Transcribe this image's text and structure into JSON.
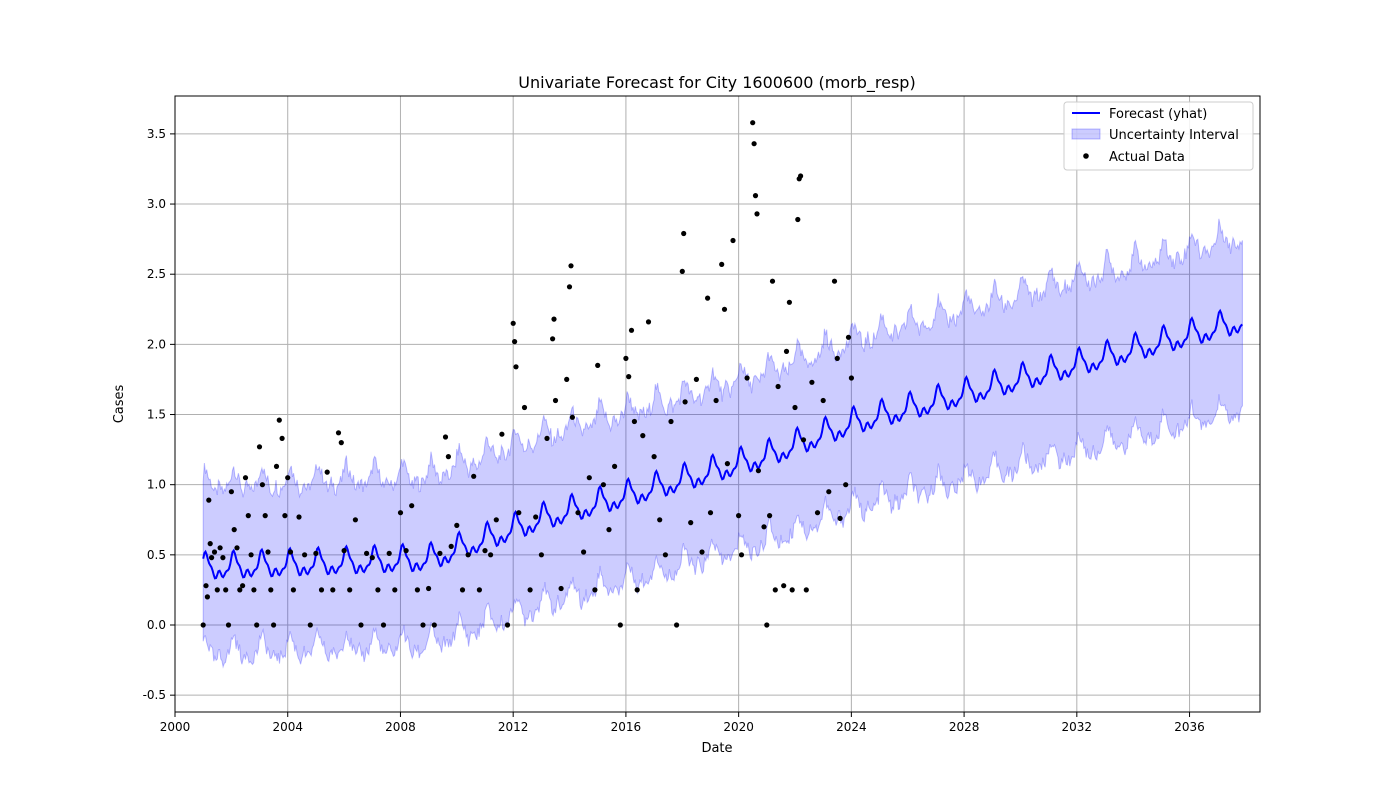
{
  "chart_data": {
    "type": "line",
    "title": "Univariate Forecast for City 1600600 (morb_resp)",
    "xlabel": "Date",
    "ylabel": "Cases",
    "x_range": [
      2000.0,
      2038.5
    ],
    "ylim": [
      -0.62,
      3.77
    ],
    "x_ticks": [
      2000,
      2004,
      2008,
      2012,
      2016,
      2020,
      2024,
      2028,
      2032,
      2036
    ],
    "y_ticks": [
      -0.5,
      0.0,
      0.5,
      1.0,
      1.5,
      2.0,
      2.5,
      3.0,
      3.5
    ],
    "grid": true,
    "legend_position": "top-right",
    "legend": [
      {
        "key": "forecast",
        "label": "Forecast (yhat)"
      },
      {
        "key": "interval",
        "label": "Uncertainty Interval"
      },
      {
        "key": "actual",
        "label": "Actual Data"
      }
    ],
    "colors": {
      "forecast": "#0000ff",
      "interval_fill": "#0000ff",
      "interval_opacity": 0.2,
      "actual": "#000000",
      "grid": "#b0b0b0"
    },
    "forecast_model": {
      "description_of_series": "yhat as a function of year; monthly frequency",
      "start_year": 2001.0,
      "end_year": 2037.9,
      "trend_points": [
        [
          2001,
          0.4
        ],
        [
          2009,
          0.46
        ],
        [
          2013,
          0.75
        ],
        [
          2017,
          0.97
        ],
        [
          2021,
          1.2
        ],
        [
          2024,
          1.43
        ],
        [
          2037.9,
          2.16
        ]
      ],
      "seasonal_amplitude": 0.1,
      "interval_halfwidth": [
        [
          2001,
          0.6
        ],
        [
          2024,
          0.6
        ],
        [
          2037.9,
          0.62
        ]
      ]
    },
    "series": [
      {
        "name": "Actual Data",
        "kind": "scatter",
        "points": [
          [
            2001.0,
            0.0
          ],
          [
            2001.1,
            0.28
          ],
          [
            2001.15,
            0.2
          ],
          [
            2001.2,
            0.89
          ],
          [
            2001.25,
            0.58
          ],
          [
            2001.3,
            0.48
          ],
          [
            2001.4,
            0.52
          ],
          [
            2001.5,
            0.25
          ],
          [
            2001.6,
            0.55
          ],
          [
            2001.7,
            0.48
          ],
          [
            2001.8,
            0.25
          ],
          [
            2001.9,
            0.0
          ],
          [
            2002.0,
            0.95
          ],
          [
            2002.1,
            0.68
          ],
          [
            2002.2,
            0.55
          ],
          [
            2002.3,
            0.25
          ],
          [
            2002.4,
            0.28
          ],
          [
            2002.5,
            1.05
          ],
          [
            2002.6,
            0.78
          ],
          [
            2002.7,
            0.5
          ],
          [
            2002.8,
            0.25
          ],
          [
            2002.9,
            0.0
          ],
          [
            2003.0,
            1.27
          ],
          [
            2003.1,
            1.0
          ],
          [
            2003.2,
            0.78
          ],
          [
            2003.3,
            0.52
          ],
          [
            2003.4,
            0.25
          ],
          [
            2003.5,
            0.0
          ],
          [
            2003.6,
            1.13
          ],
          [
            2003.7,
            1.46
          ],
          [
            2003.8,
            1.33
          ],
          [
            2003.9,
            0.78
          ],
          [
            2004.0,
            1.05
          ],
          [
            2004.1,
            0.52
          ],
          [
            2004.2,
            0.25
          ],
          [
            2004.4,
            0.77
          ],
          [
            2004.6,
            0.5
          ],
          [
            2004.8,
            0.0
          ],
          [
            2005.0,
            0.51
          ],
          [
            2005.2,
            0.25
          ],
          [
            2005.4,
            1.09
          ],
          [
            2005.6,
            0.25
          ],
          [
            2005.8,
            1.37
          ],
          [
            2005.9,
            1.3
          ],
          [
            2006.0,
            0.53
          ],
          [
            2006.2,
            0.25
          ],
          [
            2006.4,
            0.75
          ],
          [
            2006.6,
            0.0
          ],
          [
            2006.8,
            0.51
          ],
          [
            2007.0,
            0.48
          ],
          [
            2007.2,
            0.25
          ],
          [
            2007.4,
            0.0
          ],
          [
            2007.6,
            0.51
          ],
          [
            2007.8,
            0.25
          ],
          [
            2008.0,
            0.8
          ],
          [
            2008.2,
            0.53
          ],
          [
            2008.4,
            0.85
          ],
          [
            2008.6,
            0.25
          ],
          [
            2008.8,
            0.0
          ],
          [
            2009.0,
            0.26
          ],
          [
            2009.2,
            0.0
          ],
          [
            2009.4,
            0.51
          ],
          [
            2009.6,
            1.34
          ],
          [
            2009.7,
            1.2
          ],
          [
            2009.8,
            0.56
          ],
          [
            2010.0,
            0.71
          ],
          [
            2010.2,
            0.25
          ],
          [
            2010.4,
            0.5
          ],
          [
            2010.6,
            1.06
          ],
          [
            2010.8,
            0.25
          ],
          [
            2011.0,
            0.53
          ],
          [
            2011.2,
            0.5
          ],
          [
            2011.4,
            0.75
          ],
          [
            2011.6,
            1.36
          ],
          [
            2011.8,
            0.0
          ],
          [
            2012.0,
            2.15
          ],
          [
            2012.05,
            2.02
          ],
          [
            2012.1,
            1.84
          ],
          [
            2012.2,
            0.8
          ],
          [
            2012.4,
            1.55
          ],
          [
            2012.6,
            0.25
          ],
          [
            2012.8,
            0.77
          ],
          [
            2013.0,
            0.5
          ],
          [
            2013.2,
            1.33
          ],
          [
            2013.4,
            2.04
          ],
          [
            2013.45,
            2.18
          ],
          [
            2013.5,
            1.6
          ],
          [
            2013.7,
            0.26
          ],
          [
            2013.9,
            1.75
          ],
          [
            2014.0,
            2.41
          ],
          [
            2014.05,
            2.56
          ],
          [
            2014.1,
            1.48
          ],
          [
            2014.3,
            0.8
          ],
          [
            2014.5,
            0.52
          ],
          [
            2014.7,
            1.05
          ],
          [
            2014.9,
            0.25
          ],
          [
            2015.0,
            1.85
          ],
          [
            2015.2,
            1.0
          ],
          [
            2015.4,
            0.68
          ],
          [
            2015.6,
            1.13
          ],
          [
            2015.8,
            0.0
          ],
          [
            2016.0,
            1.9
          ],
          [
            2016.1,
            1.77
          ],
          [
            2016.2,
            2.1
          ],
          [
            2016.3,
            1.45
          ],
          [
            2016.4,
            0.25
          ],
          [
            2016.6,
            1.35
          ],
          [
            2016.8,
            2.16
          ],
          [
            2017.0,
            1.2
          ],
          [
            2017.2,
            0.75
          ],
          [
            2017.4,
            0.5
          ],
          [
            2017.6,
            1.45
          ],
          [
            2017.8,
            0.0
          ],
          [
            2018.0,
            2.52
          ],
          [
            2018.05,
            2.79
          ],
          [
            2018.1,
            1.59
          ],
          [
            2018.3,
            0.73
          ],
          [
            2018.5,
            1.75
          ],
          [
            2018.7,
            0.52
          ],
          [
            2018.9,
            2.33
          ],
          [
            2019.0,
            0.8
          ],
          [
            2019.2,
            1.6
          ],
          [
            2019.4,
            2.57
          ],
          [
            2019.5,
            2.25
          ],
          [
            2019.6,
            1.15
          ],
          [
            2019.8,
            2.74
          ],
          [
            2020.0,
            0.78
          ],
          [
            2020.1,
            0.5
          ],
          [
            2020.3,
            1.76
          ],
          [
            2020.5,
            3.58
          ],
          [
            2020.55,
            3.43
          ],
          [
            2020.6,
            3.06
          ],
          [
            2020.65,
            2.93
          ],
          [
            2020.7,
            1.1
          ],
          [
            2020.9,
            0.7
          ],
          [
            2021.0,
            0.0
          ],
          [
            2021.1,
            0.78
          ],
          [
            2021.2,
            2.45
          ],
          [
            2021.3,
            0.25
          ],
          [
            2021.4,
            1.7
          ],
          [
            2021.6,
            0.28
          ],
          [
            2021.7,
            1.95
          ],
          [
            2021.8,
            2.3
          ],
          [
            2021.9,
            0.25
          ],
          [
            2022.0,
            1.55
          ],
          [
            2022.1,
            2.89
          ],
          [
            2022.15,
            3.18
          ],
          [
            2022.2,
            3.2
          ],
          [
            2022.3,
            1.32
          ],
          [
            2022.4,
            0.25
          ],
          [
            2022.6,
            1.73
          ],
          [
            2022.8,
            0.8
          ],
          [
            2023.0,
            1.6
          ],
          [
            2023.2,
            0.95
          ],
          [
            2023.4,
            2.45
          ],
          [
            2023.5,
            1.9
          ],
          [
            2023.6,
            0.76
          ],
          [
            2023.8,
            1.0
          ],
          [
            2023.9,
            2.05
          ],
          [
            2024.0,
            1.76
          ]
        ]
      }
    ]
  }
}
